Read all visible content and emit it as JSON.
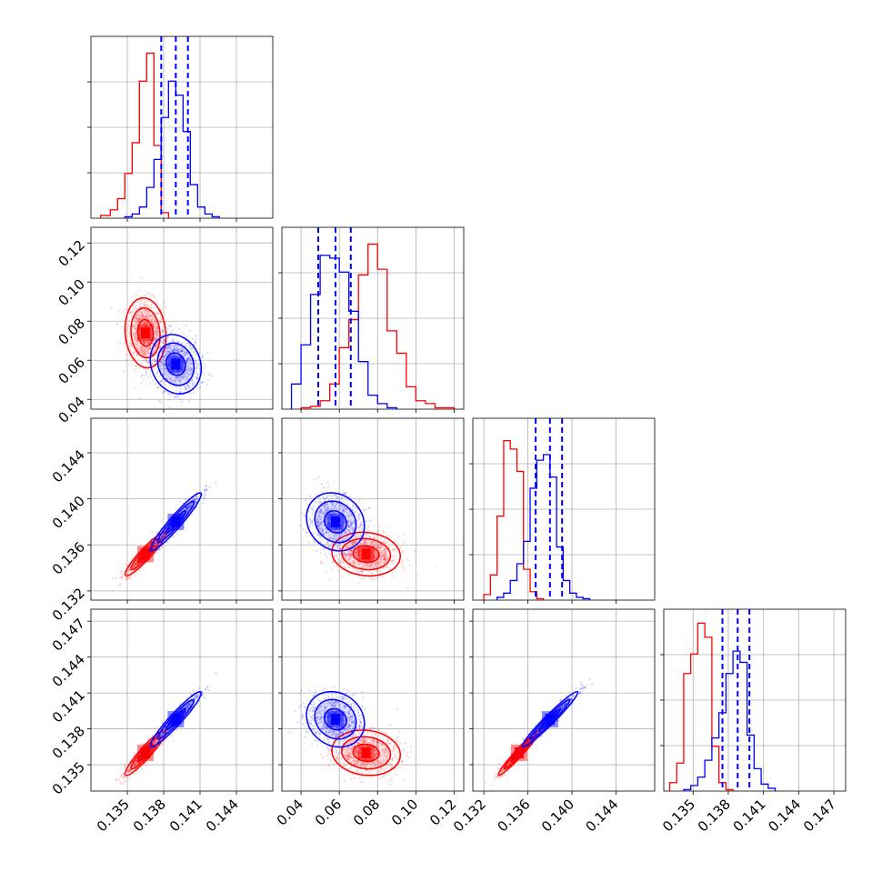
{
  "chart_data": [
    {
      "panel": "hist-p1",
      "type": "histogram",
      "xlim": [
        0.132,
        0.147
      ],
      "ylim": [
        0,
        1.3
      ],
      "grid": true,
      "x_ticks": [
        0.135,
        0.138,
        0.141,
        0.144
      ],
      "quantile_lines": {
        "color": "#0000ff",
        "style": "dashed",
        "values": [
          0.1378,
          0.139,
          0.14
        ]
      },
      "series": [
        {
          "color": "#ff0000",
          "bin_edges": [
            0.1328,
            0.1336,
            0.1342,
            0.1348,
            0.1354,
            0.136,
            0.1366,
            0.1372,
            0.1378,
            0.1384
          ],
          "counts": [
            0.02,
            0.06,
            0.14,
            0.32,
            0.54,
            0.98,
            1.18,
            0.52,
            0.04
          ]
        },
        {
          "color": "#0000ff",
          "bin_edges": [
            0.1348,
            0.1354,
            0.136,
            0.1366,
            0.1372,
            0.1378,
            0.1384,
            0.139,
            0.1396,
            0.1402,
            0.1408,
            0.1414,
            0.142,
            0.1426
          ],
          "counts": [
            0.01,
            0.03,
            0.08,
            0.22,
            0.42,
            0.72,
            0.98,
            0.88,
            0.62,
            0.24,
            0.08,
            0.03,
            0.01
          ]
        }
      ]
    },
    {
      "panel": "scatter-p2-p1",
      "type": "scatter_contour",
      "xlim": [
        0.132,
        0.147
      ],
      "ylim": [
        0.035,
        0.128
      ],
      "grid": true,
      "x_ticks": [
        0.135,
        0.138,
        0.141,
        0.144
      ],
      "y_ticks": [
        0.04,
        0.06,
        0.08,
        0.1,
        0.12
      ],
      "y_tick_labels": [
        "0.04",
        "0.06",
        "0.08",
        "0.10",
        "0.12"
      ],
      "series": [
        {
          "color": "#ff0000",
          "center": [
            0.1365,
            0.074
          ],
          "spread": [
            0.0008,
            0.0085
          ],
          "corr": -0.1
        },
        {
          "color": "#0000ff",
          "center": [
            0.139,
            0.058
          ],
          "spread": [
            0.001,
            0.0072
          ],
          "corr": -0.15
        }
      ]
    },
    {
      "panel": "hist-p2",
      "type": "histogram",
      "xlim": [
        0.03,
        0.125
      ],
      "ylim": [
        0,
        1.3
      ],
      "grid": true,
      "x_ticks": [
        0.04,
        0.06,
        0.08,
        0.1,
        0.12
      ],
      "quantile_lines": {
        "color": "#0000ff",
        "style": "dashed",
        "values": [
          0.049,
          0.058,
          0.066
        ]
      },
      "series": [
        {
          "color": "#ff0000",
          "bin_edges": [
            0.04,
            0.045,
            0.05,
            0.055,
            0.06,
            0.065,
            0.07,
            0.075,
            0.08,
            0.085,
            0.09,
            0.095,
            0.1,
            0.105,
            0.11,
            0.115,
            0.12
          ],
          "counts": [
            0.01,
            0.02,
            0.06,
            0.18,
            0.44,
            0.64,
            0.96,
            1.18,
            1.0,
            0.56,
            0.4,
            0.16,
            0.06,
            0.04,
            0.01,
            0.01
          ]
        },
        {
          "color": "#0000ff",
          "bin_edges": [
            0.035,
            0.04,
            0.045,
            0.05,
            0.055,
            0.06,
            0.065,
            0.07,
            0.075,
            0.08,
            0.085,
            0.09
          ],
          "counts": [
            0.18,
            0.46,
            0.82,
            1.1,
            1.08,
            0.98,
            0.7,
            0.34,
            0.1,
            0.04,
            0.01
          ]
        }
      ]
    },
    {
      "panel": "scatter-p3-p1",
      "type": "scatter_contour",
      "xlim": [
        0.132,
        0.147
      ],
      "ylim": [
        0.1312,
        0.147
      ],
      "grid": true,
      "x_ticks": [
        0.135,
        0.138,
        0.141,
        0.144
      ],
      "y_ticks": [
        0.132,
        0.136,
        0.14,
        0.144
      ],
      "y_tick_labels": [
        "0.132",
        "0.136",
        "0.140",
        "0.144"
      ],
      "series": [
        {
          "color": "#ff0000",
          "center": [
            0.1365,
            0.1352
          ],
          "spread": [
            0.0008,
            0.0009
          ],
          "corr": 0.93
        },
        {
          "color": "#0000ff",
          "center": [
            0.139,
            0.138
          ],
          "spread": [
            0.001,
            0.0012
          ],
          "corr": 0.95
        }
      ]
    },
    {
      "panel": "scatter-p3-p2",
      "type": "scatter_contour",
      "xlim": [
        0.03,
        0.125
      ],
      "ylim": [
        0.1312,
        0.147
      ],
      "grid": true,
      "x_ticks": [
        0.04,
        0.06,
        0.08,
        0.1,
        0.12
      ],
      "y_ticks": [
        0.132,
        0.136,
        0.14,
        0.144
      ],
      "series": [
        {
          "color": "#ff0000",
          "center": [
            0.074,
            0.1352
          ],
          "spread": [
            0.0085,
            0.0009
          ],
          "corr": -0.1
        },
        {
          "color": "#0000ff",
          "center": [
            0.058,
            0.138
          ],
          "spread": [
            0.0072,
            0.0012
          ],
          "corr": -0.15
        }
      ]
    },
    {
      "panel": "hist-p3",
      "type": "histogram",
      "xlim": [
        0.131,
        0.1475
      ],
      "ylim": [
        0,
        1.3
      ],
      "grid": true,
      "x_ticks": [
        0.132,
        0.136,
        0.14,
        0.144
      ],
      "quantile_lines": {
        "color": "#0000ff",
        "style": "dashed",
        "values": [
          0.1367,
          0.138,
          0.1391
        ]
      },
      "series": [
        {
          "color": "#ff0000",
          "bin_edges": [
            0.132,
            0.1326,
            0.1332,
            0.1338,
            0.1344,
            0.135,
            0.1356,
            0.1362,
            0.1368,
            0.1374
          ],
          "counts": [
            0.04,
            0.18,
            0.6,
            1.14,
            1.08,
            0.92,
            0.22,
            0.06,
            0.01
          ]
        },
        {
          "color": "#0000ff",
          "bin_edges": [
            0.1332,
            0.1338,
            0.1344,
            0.135,
            0.1356,
            0.1362,
            0.1368,
            0.1374,
            0.138,
            0.1386,
            0.1392,
            0.1398,
            0.1404,
            0.141,
            0.1416
          ],
          "counts": [
            0.02,
            0.05,
            0.14,
            0.26,
            0.42,
            0.8,
            1.0,
            1.04,
            0.88,
            0.38,
            0.14,
            0.05,
            0.02,
            0.01
          ]
        }
      ]
    },
    {
      "panel": "scatter-p4-p1",
      "type": "scatter_contour",
      "xlim": [
        0.132,
        0.147
      ],
      "ylim": [
        0.1328,
        0.148
      ],
      "grid": true,
      "x_ticks": [
        0.135,
        0.138,
        0.141,
        0.144
      ],
      "x_tick_labels": [
        "0.135",
        "0.138",
        "0.141",
        "0.144"
      ],
      "y_ticks": [
        0.135,
        0.138,
        0.141,
        0.144,
        0.147
      ],
      "y_tick_labels": [
        "0.135",
        "0.138",
        "0.141",
        "0.144",
        "0.147"
      ],
      "series": [
        {
          "color": "#ff0000",
          "center": [
            0.1365,
            0.136
          ],
          "spread": [
            0.0008,
            0.0009
          ],
          "corr": 0.93
        },
        {
          "color": "#0000ff",
          "center": [
            0.139,
            0.1388
          ],
          "spread": [
            0.001,
            0.0011
          ],
          "corr": 0.95
        }
      ]
    },
    {
      "panel": "scatter-p4-p2",
      "type": "scatter_contour",
      "xlim": [
        0.03,
        0.125
      ],
      "ylim": [
        0.1328,
        0.148
      ],
      "grid": true,
      "x_ticks": [
        0.04,
        0.06,
        0.08,
        0.1,
        0.12
      ],
      "x_tick_labels": [
        "0.04",
        "0.06",
        "0.08",
        "0.10",
        "0.12"
      ],
      "y_ticks": [
        0.135,
        0.138,
        0.141,
        0.144,
        0.147
      ],
      "series": [
        {
          "color": "#ff0000",
          "center": [
            0.074,
            0.136
          ],
          "spread": [
            0.0085,
            0.0009
          ],
          "corr": -0.1
        },
        {
          "color": "#0000ff",
          "center": [
            0.058,
            0.1388
          ],
          "spread": [
            0.0072,
            0.0011
          ],
          "corr": -0.15
        }
      ]
    },
    {
      "panel": "scatter-p4-p3",
      "type": "scatter_contour",
      "xlim": [
        0.131,
        0.1475
      ],
      "ylim": [
        0.1328,
        0.148
      ],
      "grid": true,
      "x_ticks": [
        0.132,
        0.136,
        0.14,
        0.144
      ],
      "x_tick_labels": [
        "0.132",
        "0.136",
        "0.140",
        "0.144"
      ],
      "y_ticks": [
        0.135,
        0.138,
        0.141,
        0.144,
        0.147
      ],
      "series": [
        {
          "color": "#ff0000",
          "center": [
            0.1352,
            0.136
          ],
          "spread": [
            0.0009,
            0.0009
          ],
          "corr": 0.97
        },
        {
          "color": "#0000ff",
          "center": [
            0.138,
            0.1388
          ],
          "spread": [
            0.0012,
            0.0011
          ],
          "corr": 0.97
        }
      ]
    },
    {
      "panel": "hist-p4",
      "type": "histogram",
      "xlim": [
        0.1325,
        0.148
      ],
      "ylim": [
        0,
        1.3
      ],
      "grid": true,
      "x_ticks": [
        0.135,
        0.138,
        0.141,
        0.144,
        0.147
      ],
      "x_tick_labels": [
        "0.135",
        "0.138",
        "0.141",
        "0.144",
        "0.147"
      ],
      "quantile_lines": {
        "color": "#0000ff",
        "style": "dashed",
        "values": [
          0.1375,
          0.1388,
          0.1398
        ]
      },
      "series": [
        {
          "color": "#ff0000",
          "bin_edges": [
            0.133,
            0.1336,
            0.1342,
            0.1348,
            0.1354,
            0.136,
            0.1366,
            0.1372,
            0.1378,
            0.1384
          ],
          "counts": [
            0.06,
            0.2,
            0.84,
            0.98,
            1.2,
            1.1,
            0.32,
            0.06,
            0.01
          ]
        },
        {
          "color": "#0000ff",
          "bin_edges": [
            0.1342,
            0.1348,
            0.1354,
            0.136,
            0.1366,
            0.1372,
            0.1378,
            0.1384,
            0.139,
            0.1396,
            0.1402,
            0.1408,
            0.1414,
            0.142
          ],
          "counts": [
            0.01,
            0.04,
            0.1,
            0.22,
            0.38,
            0.56,
            0.84,
            1.0,
            0.92,
            0.4,
            0.16,
            0.05,
            0.02
          ]
        }
      ]
    }
  ]
}
